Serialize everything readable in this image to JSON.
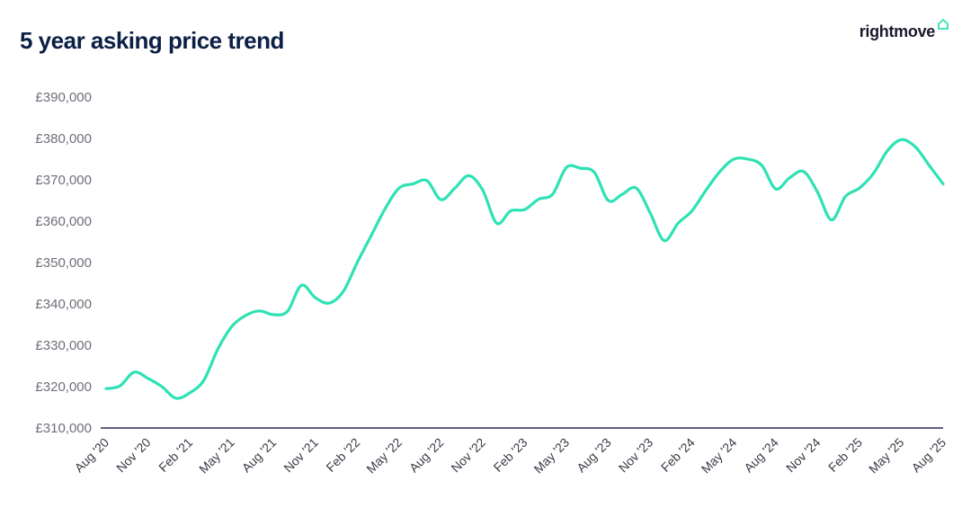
{
  "header": {
    "title": "5 year asking price trend",
    "logo_text": "rightmove",
    "logo_icon": "house-icon"
  },
  "colors": {
    "line": "#2ee2b5",
    "axis": "#2a2c54",
    "title": "#0c1f45",
    "logo_icon": "#2ee2b5"
  },
  "chart_data": {
    "type": "line",
    "title": "5 year asking price trend",
    "xlabel": "",
    "ylabel": "",
    "ylim": [
      310000,
      390000
    ],
    "y_ticks": [
      390000,
      380000,
      370000,
      360000,
      350000,
      340000,
      330000,
      320000,
      310000
    ],
    "y_tick_labels": [
      "£390,000",
      "£380,000",
      "£370,000",
      "£360,000",
      "£350,000",
      "£340,000",
      "£330,000",
      "£320,000",
      "£310,000"
    ],
    "x_tick_labels": [
      "Aug '20",
      "Nov '20",
      "Feb '21",
      "May '21",
      "Aug '21",
      "Nov '21",
      "Feb '22",
      "May '22",
      "Aug '22",
      "Nov '22",
      "Feb '23",
      "May '23",
      "Aug '23",
      "Nov '23",
      "Feb '24",
      "May '24",
      "Aug '24",
      "Nov '24",
      "Feb '25",
      "May '25",
      "Aug '25"
    ],
    "grid": false,
    "legend": "none",
    "series": [
      {
        "x": [
          "Aug '20",
          "Sep '20",
          "Oct '20",
          "Nov '20",
          "Dec '20",
          "Jan '21",
          "Feb '21",
          "Mar '21",
          "Apr '21",
          "May '21",
          "Jun '21",
          "Jul '21",
          "Aug '21",
          "Sep '21",
          "Oct '21",
          "Nov '21",
          "Dec '21",
          "Jan '22",
          "Feb '22",
          "Mar '22",
          "Apr '22",
          "May '22",
          "Jun '22",
          "Jul '22",
          "Aug '22",
          "Sep '22",
          "Oct '22",
          "Nov '22",
          "Dec '22",
          "Jan '23",
          "Feb '23",
          "Mar '23",
          "Apr '23",
          "May '23",
          "Jun '23",
          "Jul '23",
          "Aug '23",
          "Sep '23",
          "Oct '23",
          "Nov '23",
          "Dec '23",
          "Jan '24",
          "Feb '24",
          "Mar '24",
          "Apr '24",
          "May '24",
          "Jun '24",
          "Jul '24",
          "Aug '24",
          "Sep '24",
          "Oct '24",
          "Nov '24",
          "Dec '24",
          "Jan '25",
          "Feb '25",
          "Mar '25",
          "Apr '25",
          "May '25",
          "Jun '25",
          "Jul '25",
          "Aug '25"
        ],
        "values": [
          319500,
          320200,
          323500,
          322000,
          320000,
          317200,
          318500,
          321500,
          329000,
          334500,
          337200,
          338300,
          337400,
          338200,
          344500,
          341500,
          340200,
          343000,
          350000,
          356500,
          363000,
          368000,
          369000,
          369800,
          365200,
          368000,
          371000,
          367500,
          359500,
          362500,
          362800,
          365300,
          366500,
          373000,
          372800,
          371800,
          365000,
          366500,
          368000,
          362000,
          355300,
          359500,
          362500,
          367500,
          372000,
          375000,
          375000,
          373500,
          367800,
          370500,
          372000,
          367000,
          360300,
          366000,
          368000,
          371500,
          377000,
          379700,
          378000,
          373500,
          369000
        ]
      }
    ]
  }
}
